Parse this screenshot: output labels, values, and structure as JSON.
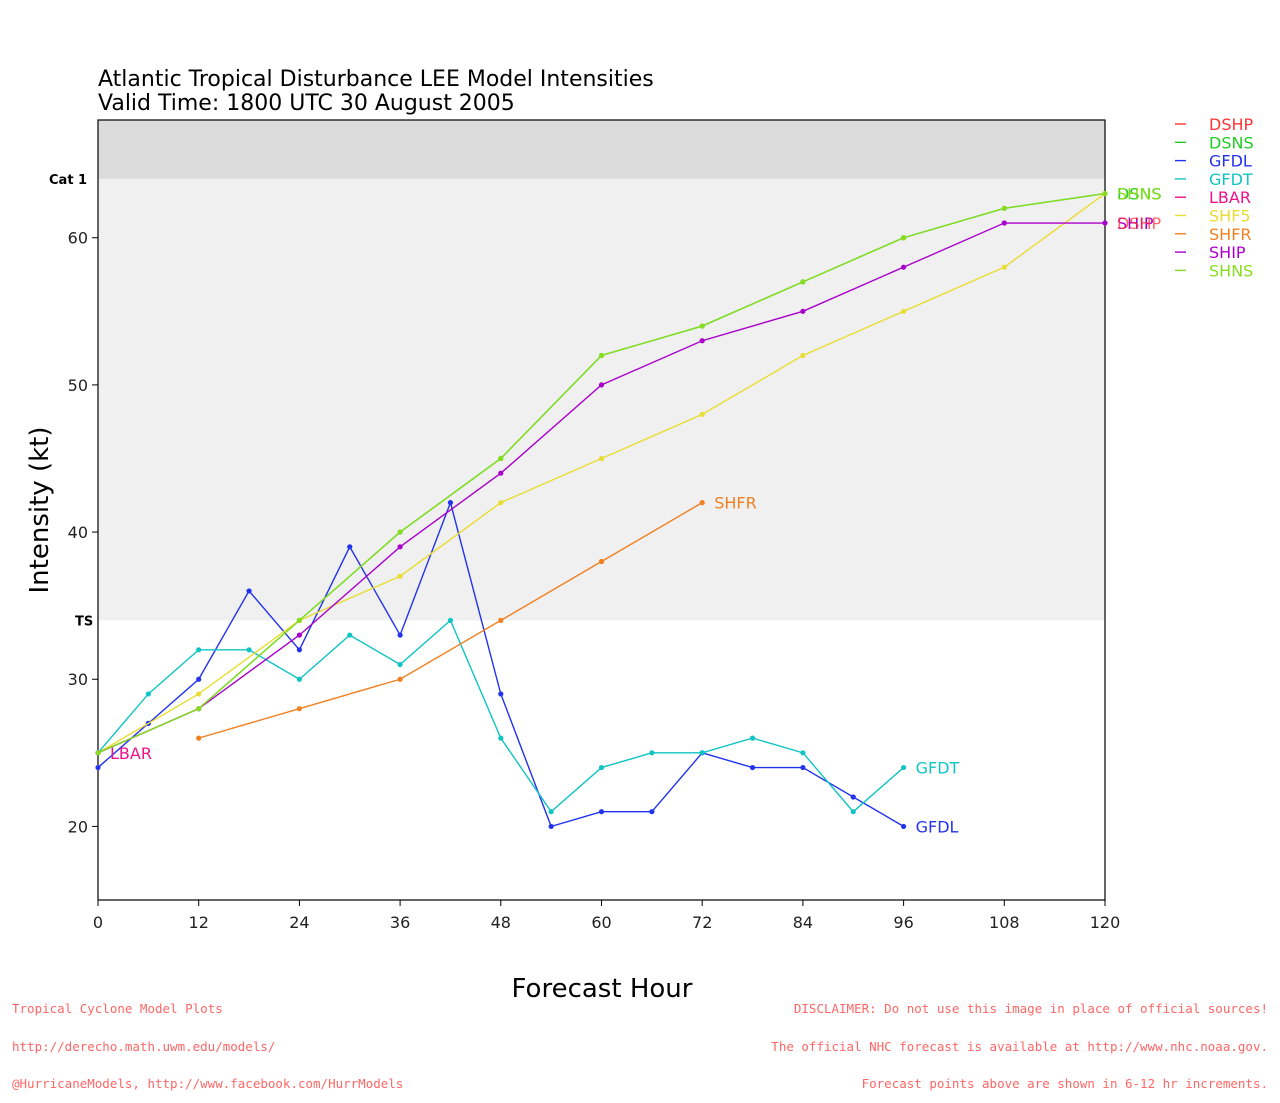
{
  "chart_data": {
    "type": "line",
    "title_lines": [
      "Atlantic Tropical Disturbance LEE Model Intensities",
      "Valid Time: 1800 UTC 30 August 2005"
    ],
    "xlabel": "Forecast Hour",
    "ylabel": "Intensity (kt)",
    "xlim": [
      0,
      120
    ],
    "ylim": [
      15,
      65
    ],
    "xticks": [
      0,
      12,
      24,
      36,
      48,
      60,
      72,
      84,
      96,
      108,
      120
    ],
    "yticks": [
      20,
      30,
      40,
      50,
      60
    ],
    "bands": [
      {
        "label": "TS",
        "from": 34,
        "to": 64,
        "color": "#f0f0f0"
      },
      {
        "label": "Cat 1",
        "from": 64,
        "to": 68,
        "color": "#dcdcdc"
      }
    ],
    "legend_position": "right",
    "series": [
      {
        "name": "DSHP",
        "color": "#ff3333",
        "x": [],
        "y": [],
        "end_label": ""
      },
      {
        "name": "DSNS",
        "color": "#22cc22",
        "x": [
          0,
          12,
          24,
          36,
          48,
          60,
          72,
          84,
          96,
          108,
          120
        ],
        "y": [
          25,
          28,
          34,
          40,
          45,
          52,
          54,
          57,
          60,
          62,
          63
        ],
        "end_label": "DSNS"
      },
      {
        "name": "GFDL",
        "color": "#2233ee",
        "x": [
          0,
          6,
          12,
          18,
          24,
          30,
          36,
          42,
          48,
          54,
          60,
          66,
          72,
          78,
          84,
          90,
          96
        ],
        "y": [
          24,
          27,
          30,
          36,
          32,
          39,
          33,
          42,
          29,
          20,
          21,
          21,
          25,
          24,
          24,
          22,
          20
        ],
        "end_label": "GFDL"
      },
      {
        "name": "GFDT",
        "color": "#11c4c4",
        "x": [
          0,
          6,
          12,
          18,
          24,
          30,
          36,
          42,
          48,
          54,
          60,
          66,
          72,
          78,
          84,
          90,
          96
        ],
        "y": [
          25,
          29,
          32,
          32,
          30,
          33,
          31,
          34,
          26,
          21,
          24,
          25,
          25,
          26,
          25,
          21,
          24
        ],
        "end_label": "GFDT"
      },
      {
        "name": "LBAR",
        "color": "#ee1188",
        "x": [
          0
        ],
        "y": [
          25
        ],
        "end_label": "LBAR"
      },
      {
        "name": "SHF5",
        "color": "#e8dd33",
        "x": [
          0,
          12,
          24,
          36,
          48,
          60,
          72,
          84,
          96,
          108,
          120
        ],
        "y": [
          25,
          29,
          34,
          37,
          42,
          45,
          48,
          52,
          55,
          58,
          63
        ],
        "end_label": ""
      },
      {
        "name": "SHFR",
        "color": "#f08020",
        "x": [
          12,
          24,
          36,
          48,
          60,
          72
        ],
        "y": [
          26,
          28,
          30,
          34,
          38,
          42
        ],
        "end_label": "SHFR"
      },
      {
        "name": "SHIP",
        "color": "#aa00cc",
        "x": [
          0,
          12,
          24,
          36,
          48,
          60,
          72,
          84,
          96,
          108,
          120
        ],
        "y": [
          25,
          28,
          33,
          39,
          44,
          50,
          53,
          55,
          58,
          61,
          61
        ],
        "end_label": "SHIP"
      },
      {
        "name": "SHNS",
        "color": "#88dd22",
        "x": [
          0,
          12,
          24,
          36,
          48,
          60,
          72,
          84,
          96,
          108,
          120
        ],
        "y": [
          25,
          28,
          34,
          40,
          45,
          52,
          54,
          57,
          60,
          62,
          63
        ],
        "end_label": "SHNS"
      }
    ],
    "dshp_end_label": "DSHP"
  },
  "footer": {
    "left_lines": [
      "Tropical Cyclone Model Plots",
      "http://derecho.math.uwm.edu/models/",
      "@HurricaneModels, http://www.facebook.com/HurrModels"
    ],
    "right_lines": [
      "DISCLAIMER: Do not use this image in place of official sources!",
      "The official NHC forecast is available at http://www.nhc.noaa.gov.",
      "Forecast points above are shown in 6-12 hr increments."
    ]
  }
}
